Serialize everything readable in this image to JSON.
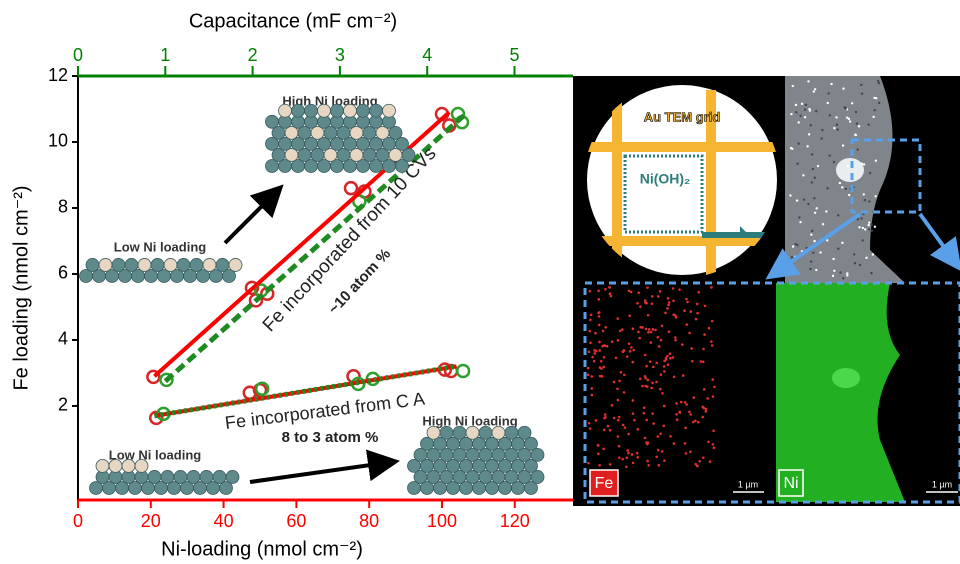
{
  "chart_data": {
    "type": "scatter",
    "x_label": "Ni-loading (nmol cm⁻²)",
    "y_label": "Fe loading (nmol cm⁻²)",
    "x2_label": "Capacitance (mF cm⁻²)",
    "xlim": [
      0,
      136
    ],
    "xticks": [
      0,
      20,
      40,
      60,
      80,
      100,
      120
    ],
    "x_color": "#ff0000",
    "x2lim": [
      0,
      5.67
    ],
    "x2ticks": [
      0,
      1,
      2,
      3,
      4,
      5
    ],
    "x2_color": "#008000",
    "ylim": [
      -0.85,
      12
    ],
    "yticks": [
      2,
      4,
      6,
      8,
      10,
      12
    ],
    "series": [
      {
        "color": "#d62728",
        "marker": "circle",
        "x": [
          20.7,
          47.8,
          48.9,
          52,
          75,
          78.7,
          100,
          102
        ],
        "values": [
          2.88,
          5.58,
          5.2,
          5.4,
          8.6,
          8.5,
          10.85,
          10.5
        ]
      },
      {
        "color": "#2ca02c",
        "marker": "circle",
        "x": [
          24.3,
          50.3,
          77.3,
          104.4,
          105.5
        ],
        "values": [
          2.79,
          5.5,
          8.2,
          10.85,
          10.6
        ]
      },
      {
        "color": "#d62728",
        "marker": "circle",
        "x": [
          21.5,
          47.2,
          50,
          75.7,
          100.8,
          102.5
        ],
        "values": [
          1.64,
          2.4,
          2.48,
          2.9,
          3.1,
          3.06
        ]
      },
      {
        "color": "#2ca02c",
        "marker": "circle",
        "x": [
          23.5,
          50.6,
          77,
          81,
          105.8
        ],
        "values": [
          1.76,
          2.52,
          2.67,
          2.82,
          3.06
        ]
      },
      {
        "color": "#ff0000",
        "style": "solid",
        "x": [
          21,
          102
        ],
        "values": [
          2.9,
          10.9
        ]
      },
      {
        "color": "#1f8a1f",
        "style": "dashed",
        "x": [
          24,
          106
        ],
        "values": [
          2.75,
          10.8
        ]
      },
      {
        "color": "#ff0000",
        "style": "solid",
        "x": [
          21,
          104
        ],
        "values": [
          1.7,
          3.2
        ]
      },
      {
        "color": "#1f8a1f",
        "style": "dotted",
        "x": [
          21,
          104
        ],
        "values": [
          1.7,
          3.2
        ]
      }
    ],
    "annotations": [
      "High Ni loading",
      "Low Ni loading",
      "Fe incorporated from 10 CVs",
      "~10 atom %",
      "Fe incorporated from C A",
      "8 to 3 atom %",
      "High Ni loading",
      "Low Ni loading"
    ]
  },
  "image_panel": {
    "inset_grid": "Au TEM grid",
    "inset_film": "Ni(OH)₂",
    "fe_map": "Fe",
    "ni_map": "Ni",
    "scale_fe": "1 µm",
    "scale_ni": "1 µm"
  }
}
